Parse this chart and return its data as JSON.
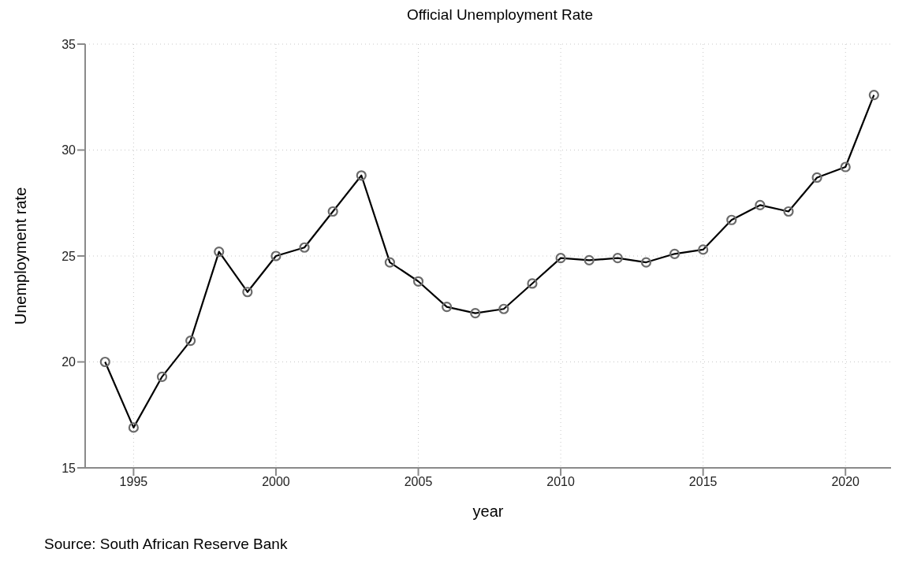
{
  "chart_data": {
    "type": "line",
    "title": "Official Unemployment Rate",
    "xlabel": "year",
    "ylabel": "Unemployment rate",
    "annotations": [
      "Source: South African Reserve Bank"
    ],
    "x": [
      1994,
      1995,
      1996,
      1997,
      1998,
      1999,
      2000,
      2001,
      2002,
      2003,
      2004,
      2005,
      2006,
      2007,
      2008,
      2009,
      2010,
      2011,
      2012,
      2013,
      2014,
      2015,
      2016,
      2017,
      2018,
      2019,
      2020,
      2021
    ],
    "series": [
      {
        "color": "#000000",
        "values": [
          20.0,
          16.9,
          19.3,
          21.0,
          25.2,
          23.3,
          25.0,
          25.4,
          27.1,
          28.8,
          24.7,
          23.8,
          22.6,
          22.3,
          22.5,
          23.7,
          24.9,
          24.8,
          24.9,
          24.7,
          25.1,
          25.3,
          26.7,
          27.4,
          27.1,
          28.7,
          29.2,
          32.6
        ]
      }
    ],
    "xlim": [
      1993.3,
      2021.6
    ],
    "xticks": [
      1995,
      2000,
      2005,
      2010,
      2015,
      2020
    ],
    "ylim": [
      15,
      35
    ],
    "yticks": [
      15,
      20,
      25,
      30,
      35
    ],
    "grid": true,
    "legend": false,
    "marker": "circle",
    "line_style": "solid"
  }
}
